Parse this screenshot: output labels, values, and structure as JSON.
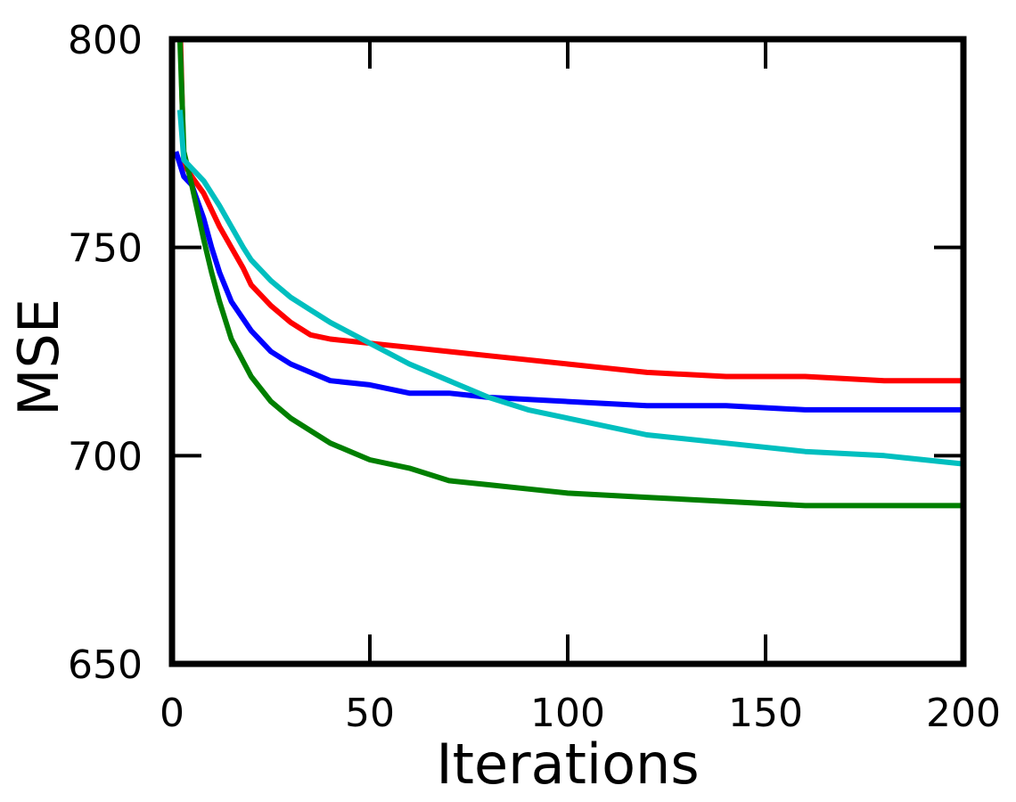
{
  "chart_data": {
    "type": "line",
    "xlabel": "Iterations",
    "ylabel": "MSE",
    "xlim": [
      0,
      200
    ],
    "ylim": [
      650,
      800
    ],
    "xticks": [
      0,
      50,
      100,
      150,
      200
    ],
    "yticks": [
      650,
      700,
      750,
      800
    ],
    "xtick_labels": [
      "0",
      "50",
      "100",
      "150",
      "200"
    ],
    "ytick_labels": [
      "650",
      "700",
      "750",
      "800"
    ],
    "grid": false,
    "series": [
      {
        "color": "#ff0000",
        "x": [
          2,
          3,
          5,
          8,
          10,
          12,
          15,
          18,
          20,
          25,
          30,
          35,
          40,
          50,
          60,
          70,
          80,
          90,
          100,
          110,
          120,
          140,
          160,
          180,
          200
        ],
        "y": [
          805,
          770,
          767,
          763,
          759,
          755,
          750,
          745,
          741,
          736,
          732,
          729,
          728,
          727,
          726,
          725,
          724,
          723,
          722,
          721,
          720,
          719,
          719,
          718,
          718
        ]
      },
      {
        "color": "#0000ff",
        "x": [
          1,
          2,
          3,
          5,
          8,
          10,
          12,
          15,
          20,
          25,
          30,
          35,
          40,
          50,
          60,
          70,
          80,
          100,
          120,
          140,
          160,
          180,
          200
        ],
        "y": [
          773,
          770,
          767,
          765,
          757,
          750,
          744,
          737,
          730,
          725,
          722,
          720,
          718,
          717,
          715,
          715,
          714,
          713,
          712,
          712,
          711,
          711,
          711
        ]
      },
      {
        "color": "#007f00",
        "x": [
          2,
          3,
          5,
          8,
          10,
          12,
          15,
          20,
          25,
          30,
          35,
          40,
          50,
          60,
          70,
          80,
          90,
          100,
          120,
          140,
          160,
          180,
          200
        ],
        "y": [
          800,
          773,
          765,
          752,
          744,
          737,
          728,
          719,
          713,
          709,
          706,
          703,
          699,
          697,
          694,
          693,
          692,
          691,
          690,
          689,
          688,
          688,
          688
        ]
      },
      {
        "color": "#00bfbf",
        "x": [
          2,
          3,
          5,
          8,
          10,
          12,
          15,
          18,
          20,
          25,
          30,
          35,
          40,
          50,
          60,
          70,
          80,
          90,
          100,
          120,
          140,
          160,
          180,
          200
        ],
        "y": [
          783,
          771,
          769,
          766,
          763,
          760,
          755,
          750,
          747,
          742,
          738,
          735,
          732,
          727,
          722,
          718,
          714,
          711,
          709,
          705,
          703,
          701,
          700,
          698
        ]
      }
    ]
  }
}
